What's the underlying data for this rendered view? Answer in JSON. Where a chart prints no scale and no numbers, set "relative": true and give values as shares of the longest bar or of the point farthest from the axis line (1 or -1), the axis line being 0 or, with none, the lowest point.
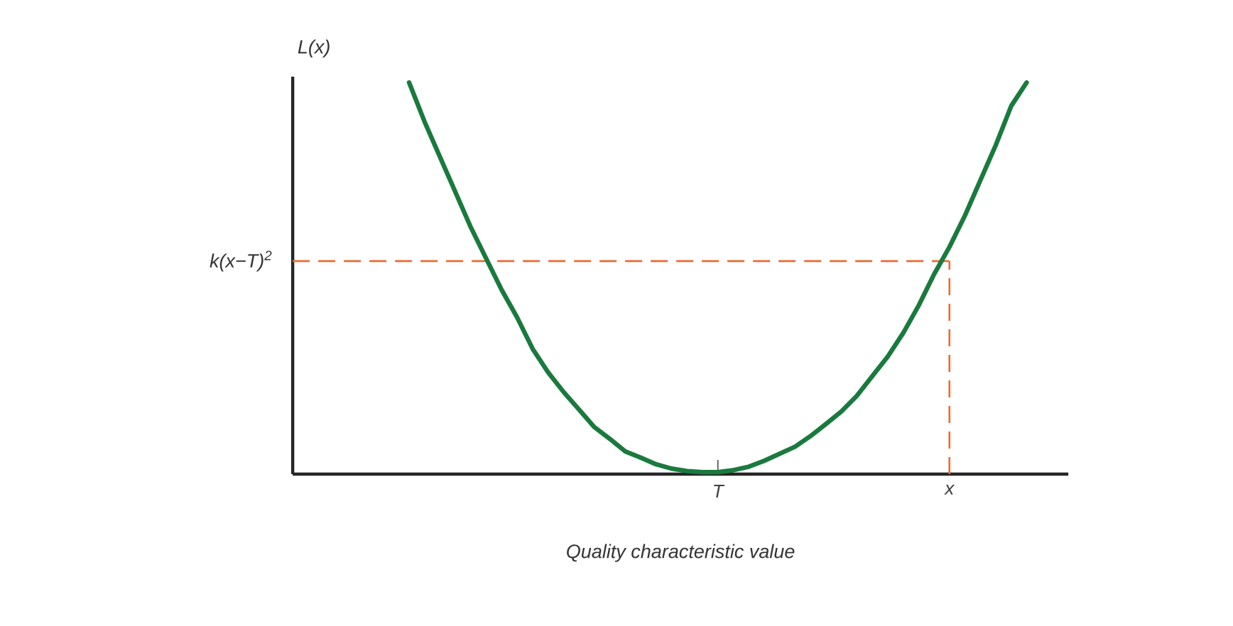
{
  "chart_data": {
    "type": "line",
    "relative": true,
    "xlabel": "Quality characteristic value",
    "ylabel": "L(x)",
    "categories": [
      null,
      null,
      null,
      null,
      null,
      null,
      null,
      null,
      null,
      null,
      null,
      null,
      null,
      null,
      null,
      null,
      null,
      null,
      null,
      null,
      "T",
      null,
      null,
      null,
      null,
      null,
      null,
      null,
      null,
      null,
      null,
      null,
      null,
      null,
      null,
      "x",
      null,
      null,
      null,
      null,
      null
    ],
    "series": [
      {
        "color": "#1a7a3e",
        "values": [
          1,
          0.9,
          0.81,
          0.72,
          0.63,
          0.55,
          0.47,
          0.4,
          0.32,
          0.26,
          0.21,
          0.165,
          0.12,
          0.09,
          0.058,
          0.042,
          0.025,
          0.014,
          0.008,
          0.005,
          0.005,
          0.01,
          0.019,
          0.034,
          0.052,
          0.07,
          0.097,
          0.128,
          0.16,
          0.2,
          0.25,
          0.3,
          0.36,
          0.43,
          0.51,
          0.58,
          0.66,
          0.75,
          0.84,
          0.94,
          1
        ]
      }
    ],
    "ref_lines": [
      {
        "axis": "y",
        "value": 0.544,
        "label": "k(x−T)$^{2}$",
        "color": "#ef6a2e",
        "line_style": "dashed"
      },
      {
        "axis": "x",
        "value": "x",
        "color": "#ef6a2e",
        "line_style": "dashed"
      }
    ],
    "marker": "none",
    "line_style": "solid"
  }
}
